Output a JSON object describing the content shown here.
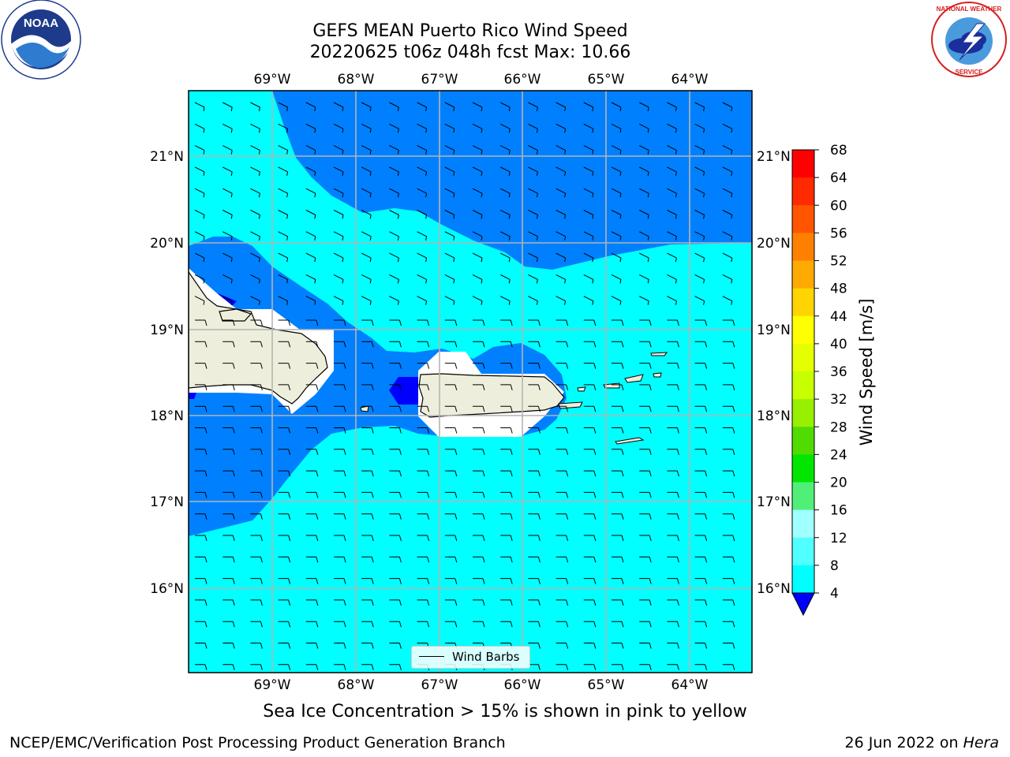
{
  "title": {
    "line1": "GEFS MEAN Puerto Rico Wind Speed",
    "line2": "20220625 t06z 048h fcst   Max: 10.66"
  },
  "axes": {
    "lon_ticks": [
      "69°W",
      "68°W",
      "67°W",
      "66°W",
      "65°W",
      "64°W"
    ],
    "lat_ticks": [
      "21°N",
      "20°N",
      "19°N",
      "18°N",
      "17°N",
      "16°N"
    ]
  },
  "colorbar": {
    "label": "Wind Speed [m/s]",
    "ticks": [
      "68",
      "64",
      "60",
      "56",
      "52",
      "48",
      "44",
      "40",
      "36",
      "32",
      "28",
      "24",
      "20",
      "16",
      "12",
      "8",
      "4"
    ],
    "colors": [
      "#ff0000",
      "#ff2a00",
      "#ff5500",
      "#ff8000",
      "#ffaa00",
      "#ffd400",
      "#ffff00",
      "#e6ff00",
      "#c8ff00",
      "#96f000",
      "#50dc00",
      "#00e600",
      "#50f078",
      "#a0ffff",
      "#50ffff",
      "#00ffff",
      "#0080ff"
    ],
    "under_color": "#0000ff"
  },
  "legend": {
    "label": "Wind Barbs"
  },
  "subnote": "Sea Ice Concentration > 15% is shown in pink to yellow",
  "footer": {
    "left": "NCEP/EMC/Verification Post Processing Product Generation Branch",
    "right_date": "26 Jun 2022 on ",
    "right_host": "Hera"
  },
  "logos": {
    "left": "NOAA",
    "right": "NATIONAL WEATHER SERVICE"
  },
  "map_colors": {
    "land": "#eeeedc",
    "light_fill": "#00ffff",
    "mid_fill": "#0080ff",
    "dark_fill": "#0000ff",
    "grid": "#b4b4b4"
  }
}
